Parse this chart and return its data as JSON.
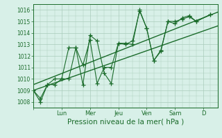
{
  "background_color": "#d8f0e8",
  "grid_color": "#aaccbb",
  "line_color": "#1a6b2a",
  "ylim": [
    1007.5,
    1016.5
  ],
  "yticks": [
    1008,
    1009,
    1010,
    1011,
    1012,
    1013,
    1014,
    1015,
    1016
  ],
  "xlabel": "Pression niveau de la mer( hPa )",
  "xlabel_fontsize": 7.5,
  "day_labels": [
    "Lun",
    "Mer",
    "Jeu",
    "Ven",
    "Sam",
    "D"
  ],
  "day_positions": [
    2.0,
    4.0,
    6.0,
    8.0,
    10.0,
    12.0
  ],
  "xlim": [
    0.0,
    13.0
  ],
  "series": [
    {
      "x": [
        0.0,
        0.5,
        1.0,
        1.5,
        2.0,
        2.5,
        3.0,
        3.5,
        4.0,
        4.5,
        5.0,
        5.5,
        6.0,
        6.5,
        7.0,
        7.5,
        8.0,
        8.5,
        9.0,
        9.5,
        10.0,
        10.5,
        11.0,
        11.5,
        12.5
      ],
      "y": [
        1009.0,
        1008.0,
        1009.5,
        1009.5,
        1010.0,
        1010.0,
        1012.7,
        1009.5,
        1013.8,
        1013.3,
        1010.5,
        1009.6,
        1013.1,
        1013.1,
        1013.0,
        1016.0,
        1014.4,
        1011.6,
        1012.4,
        1015.0,
        1014.8,
        1015.3,
        1015.5,
        1015.0,
        1015.6
      ],
      "linestyle": "-",
      "with_markers": true
    },
    {
      "x": [
        0.0,
        0.5,
        1.0,
        1.5,
        2.0,
        2.5,
        3.0,
        3.5,
        4.0,
        4.5,
        5.0,
        5.5,
        6.0,
        6.5,
        7.0,
        7.5,
        8.0,
        8.5,
        9.0,
        9.5,
        10.0,
        10.5,
        11.0,
        11.5,
        12.5
      ],
      "y": [
        1009.0,
        1008.3,
        1009.5,
        1010.0,
        1010.0,
        1012.7,
        1012.7,
        1011.2,
        1013.4,
        1009.6,
        1011.0,
        1011.0,
        1013.1,
        1013.0,
        1013.3,
        1015.9,
        1014.4,
        1011.6,
        1012.5,
        1015.0,
        1015.0,
        1015.2,
        1015.4,
        1015.0,
        1015.6
      ],
      "linestyle": "-",
      "with_markers": true
    },
    {
      "x": [
        0.0,
        13.0
      ],
      "y": [
        1009.5,
        1015.8
      ],
      "linestyle": "-",
      "with_markers": false,
      "linewidth": 1.0
    },
    {
      "x": [
        0.0,
        13.0
      ],
      "y": [
        1009.0,
        1014.6
      ],
      "linestyle": "-",
      "with_markers": false,
      "linewidth": 1.0
    }
  ],
  "marker": "+",
  "marker_size": 4,
  "linewidth": 0.8
}
